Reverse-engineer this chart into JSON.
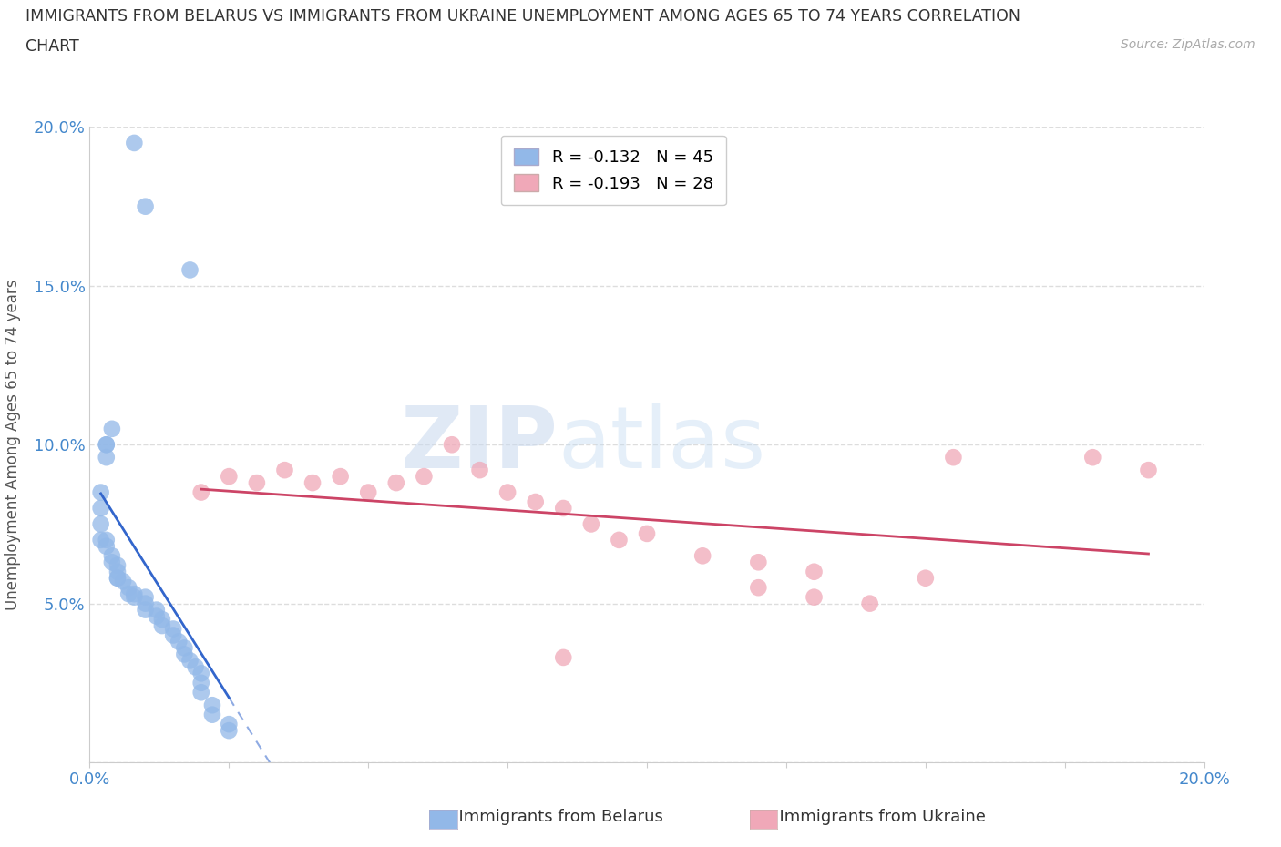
{
  "title_line1": "IMMIGRANTS FROM BELARUS VS IMMIGRANTS FROM UKRAINE UNEMPLOYMENT AMONG AGES 65 TO 74 YEARS CORRELATION",
  "title_line2": "CHART",
  "source_text": "Source: ZipAtlas.com",
  "ylabel": "Unemployment Among Ages 65 to 74 years",
  "xlim": [
    0.0,
    0.2
  ],
  "ylim": [
    0.0,
    0.2
  ],
  "xticks": [
    0.0,
    0.025,
    0.05,
    0.075,
    0.1,
    0.125,
    0.15,
    0.175,
    0.2
  ],
  "yticks": [
    0.0,
    0.05,
    0.1,
    0.15,
    0.2
  ],
  "ytick_labels": [
    "",
    "5.0%",
    "10.0%",
    "15.0%",
    "20.0%"
  ],
  "xtick_labels_show": [
    "0.0%",
    "20.0%"
  ],
  "grid_color": "#dddddd",
  "background_color": "#ffffff",
  "belarus_color": "#92b8e8",
  "ukraine_color": "#f0a8b8",
  "belarus_line_color": "#3366cc",
  "ukraine_line_color": "#cc4466",
  "R_belarus": -0.132,
  "N_belarus": 45,
  "R_ukraine": -0.193,
  "N_ukraine": 28,
  "belarus_x": [
    0.008,
    0.01,
    0.018,
    0.003,
    0.004,
    0.003,
    0.003,
    0.002,
    0.002,
    0.002,
    0.002,
    0.003,
    0.003,
    0.004,
    0.004,
    0.005,
    0.005,
    0.005,
    0.005,
    0.006,
    0.007,
    0.007,
    0.008,
    0.008,
    0.01,
    0.01,
    0.01,
    0.012,
    0.012,
    0.013,
    0.013,
    0.015,
    0.015,
    0.016,
    0.017,
    0.017,
    0.018,
    0.019,
    0.02,
    0.02,
    0.02,
    0.022,
    0.022,
    0.025,
    0.025
  ],
  "belarus_y": [
    0.195,
    0.175,
    0.155,
    0.1,
    0.105,
    0.1,
    0.096,
    0.085,
    0.08,
    0.075,
    0.07,
    0.07,
    0.068,
    0.065,
    0.063,
    0.062,
    0.06,
    0.058,
    0.058,
    0.057,
    0.055,
    0.053,
    0.053,
    0.052,
    0.052,
    0.05,
    0.048,
    0.048,
    0.046,
    0.045,
    0.043,
    0.042,
    0.04,
    0.038,
    0.036,
    0.034,
    0.032,
    0.03,
    0.028,
    0.025,
    0.022,
    0.018,
    0.015,
    0.012,
    0.01
  ],
  "ukraine_x": [
    0.02,
    0.025,
    0.03,
    0.035,
    0.04,
    0.045,
    0.05,
    0.055,
    0.06,
    0.065,
    0.07,
    0.075,
    0.08,
    0.085,
    0.09,
    0.1,
    0.11,
    0.12,
    0.13,
    0.15,
    0.155,
    0.18,
    0.19,
    0.12,
    0.13,
    0.085,
    0.095,
    0.14
  ],
  "ukraine_y": [
    0.085,
    0.09,
    0.088,
    0.092,
    0.088,
    0.09,
    0.085,
    0.088,
    0.09,
    0.1,
    0.092,
    0.085,
    0.082,
    0.08,
    0.075,
    0.072,
    0.065,
    0.063,
    0.06,
    0.058,
    0.096,
    0.096,
    0.092,
    0.055,
    0.052,
    0.033,
    0.07,
    0.05
  ]
}
